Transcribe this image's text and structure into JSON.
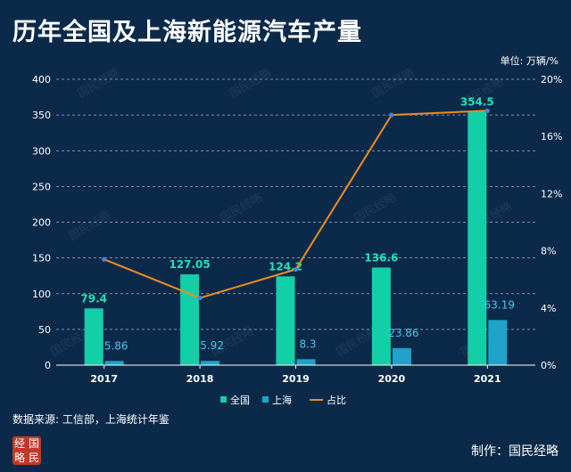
{
  "title": "历年全国及上海新能源汽车产量",
  "unit_label": "单位: 万辆/%",
  "source": "数据来源: 工信部，上海统计年鉴",
  "author": "制作：国民经略",
  "logo_chars": [
    "经",
    "国",
    "略",
    "民"
  ],
  "watermark": "国民经略",
  "colors": {
    "background": "#0b2a4a",
    "national": "#12cfa7",
    "shanghai": "#1fa3c8",
    "share": "#f08c1e",
    "share_point": "#4d7fe0",
    "grid": "#9fb3c8"
  },
  "chart_data": {
    "type": "bar",
    "categories": [
      "2017",
      "2018",
      "2019",
      "2020",
      "2021"
    ],
    "series": [
      {
        "name": "全国",
        "kind": "bar",
        "axis": "left",
        "values": [
          79.4,
          127.05,
          124.2,
          136.6,
          354.5
        ],
        "labels": [
          "79.4",
          "127.05",
          "124.2",
          "136.6",
          "354.5"
        ]
      },
      {
        "name": "上海",
        "kind": "bar",
        "axis": "left",
        "values": [
          5.86,
          5.92,
          8.3,
          23.86,
          63.19
        ],
        "labels": [
          "5.86",
          "5.92",
          "8.3",
          "23.86",
          "63.19"
        ]
      },
      {
        "name": "占比",
        "kind": "line",
        "axis": "right",
        "values": [
          7.4,
          4.7,
          6.7,
          17.5,
          17.8
        ]
      }
    ],
    "y_left": {
      "min": 0,
      "max": 400,
      "ticks": [
        "0",
        "50",
        "100",
        "150",
        "200",
        "250",
        "300",
        "350",
        "400"
      ]
    },
    "y_right": {
      "min": 0,
      "max": 20,
      "ticks": [
        "0%",
        "4%",
        "8%",
        "12%",
        "16%",
        "20%"
      ]
    },
    "grid": true,
    "legend": "bottom"
  }
}
